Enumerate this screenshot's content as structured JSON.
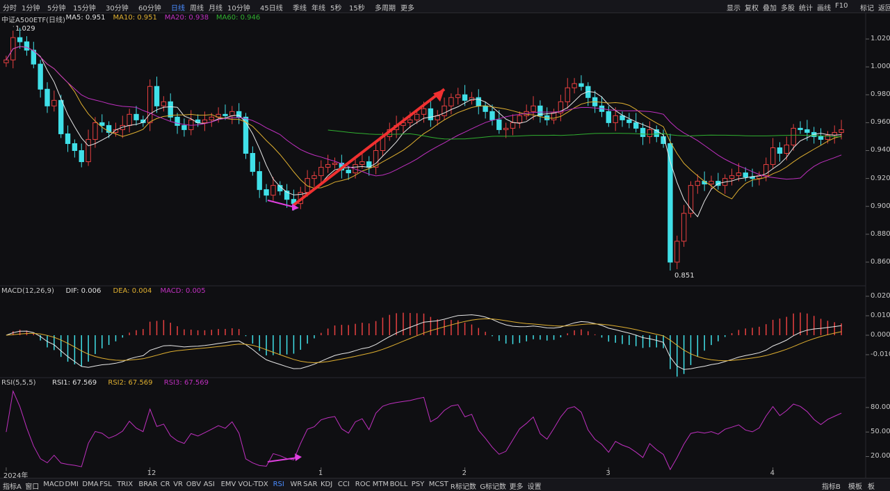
{
  "top_toolbar": {
    "left_items": [
      "分时",
      "1分钟",
      "5分钟",
      "15分钟",
      "30分钟",
      "60分钟",
      "日线",
      "周线",
      "月线",
      "10分钟",
      "45日线",
      "季线",
      "年线",
      "5秒",
      "15秒",
      "多周期",
      "更多"
    ],
    "active": "日线",
    "right_items": [
      "显示",
      "复权",
      "叠加",
      "多股",
      "统计",
      "画线",
      "F10",
      "标记",
      "返回"
    ]
  },
  "main_legend": {
    "title": "中证A500ETF(日线)",
    "items": [
      {
        "label": "MA5: 0.951",
        "color": "#e0e0e0"
      },
      {
        "label": "MA10: 0.951",
        "color": "#e0b030"
      },
      {
        "label": "MA20: 0.938",
        "color": "#c030c0"
      },
      {
        "label": "MA60: 0.946",
        "color": "#30b030"
      }
    ]
  },
  "price_axis": {
    "ticks": [
      "1.020",
      "1.000",
      "0.980",
      "0.960",
      "0.940",
      "0.920",
      "0.900",
      "0.880",
      "0.860"
    ],
    "min": 0.846,
    "max": 1.033
  },
  "annotations": {
    "high": "1.029",
    "low": "0.851"
  },
  "macd_legend": {
    "title": "MACD(12,26,9)",
    "items": [
      {
        "label": "DIF: 0.006",
        "color": "#e0e0e0"
      },
      {
        "label": "DEA: 0.004",
        "color": "#e0b030"
      },
      {
        "label": "MACD: 0.005",
        "color": "#c030c0"
      }
    ]
  },
  "macd_axis": {
    "ticks": [
      "0.020",
      "0.010",
      "0.000",
      "-0.010"
    ]
  },
  "rsi_legend": {
    "title": "RSI(5,5,5)",
    "items": [
      {
        "label": "RSI1: 67.569",
        "color": "#e0e0e0"
      },
      {
        "label": "RSI2: 67.569",
        "color": "#e0b030"
      },
      {
        "label": "RSI3: 67.569",
        "color": "#c030c0"
      }
    ]
  },
  "rsi_axis": {
    "ticks": [
      "80.00",
      "50.00",
      "20.00"
    ]
  },
  "x_axis_labels": [
    {
      "label": "2024年",
      "index": 0
    },
    {
      "label": "12",
      "index": 21
    },
    {
      "label": "1",
      "index": 46
    },
    {
      "label": "2",
      "index": 67
    },
    {
      "label": "3",
      "index": 88
    },
    {
      "label": "4",
      "index": 112
    }
  ],
  "bottom_toolbar": {
    "left_items": [
      "指标A",
      "窗口",
      "MACD",
      "DMI",
      "DMA",
      "FSL",
      "TRIX",
      "BRAR",
      "CR",
      "VR",
      "OBV",
      "ASI",
      "EMV",
      "VOL-TDX",
      "RSI",
      "WR",
      "SAR",
      "KDJ",
      "CCI",
      "ROC",
      "MTM",
      "BOLL",
      "PSY",
      "MCST",
      "R标记数",
      "G标记数",
      "更多",
      "设置"
    ],
    "active": "RSI",
    "right_items": [
      "指标B",
      "模板",
      "板"
    ]
  },
  "colors": {
    "up": "#e84040",
    "down": "#40e0e8",
    "bg": "#0f0f12",
    "arrow_red": "#f03030",
    "arrow_magenta": "#e040e0"
  },
  "chart_data": {
    "type": "candlestick",
    "closes": [
      1.005,
      1.021,
      1.018,
      1.012,
      1.002,
      0.984,
      0.972,
      0.976,
      0.952,
      0.945,
      0.94,
      0.932,
      0.948,
      0.96,
      0.958,
      0.953,
      0.955,
      0.958,
      0.966,
      0.962,
      0.96,
      0.986,
      0.972,
      0.975,
      0.964,
      0.958,
      0.955,
      0.962,
      0.96,
      0.962,
      0.964,
      0.966,
      0.965,
      0.968,
      0.964,
      0.938,
      0.925,
      0.912,
      0.908,
      0.915,
      0.911,
      0.905,
      0.902,
      0.91,
      0.92,
      0.922,
      0.928,
      0.93,
      0.931,
      0.926,
      0.924,
      0.93,
      0.932,
      0.928,
      0.94,
      0.95,
      0.955,
      0.958,
      0.96,
      0.962,
      0.966,
      0.97,
      0.962,
      0.965,
      0.972,
      0.978,
      0.98,
      0.976,
      0.978,
      0.972,
      0.968,
      0.962,
      0.955,
      0.956,
      0.96,
      0.965,
      0.968,
      0.972,
      0.965,
      0.962,
      0.967,
      0.975,
      0.985,
      0.988,
      0.986,
      0.978,
      0.972,
      0.968,
      0.96,
      0.965,
      0.962,
      0.96,
      0.956,
      0.95,
      0.955,
      0.95,
      0.945,
      0.86,
      0.875,
      0.895,
      0.915,
      0.918,
      0.916,
      0.918,
      0.915,
      0.92,
      0.922,
      0.924,
      0.921,
      0.92,
      0.922,
      0.93,
      0.942,
      0.938,
      0.944,
      0.956,
      0.955,
      0.953,
      0.95,
      0.948,
      0.951,
      0.953,
      0.955
    ],
    "ma20_last": 0.938,
    "ma60_last": 0.946
  }
}
